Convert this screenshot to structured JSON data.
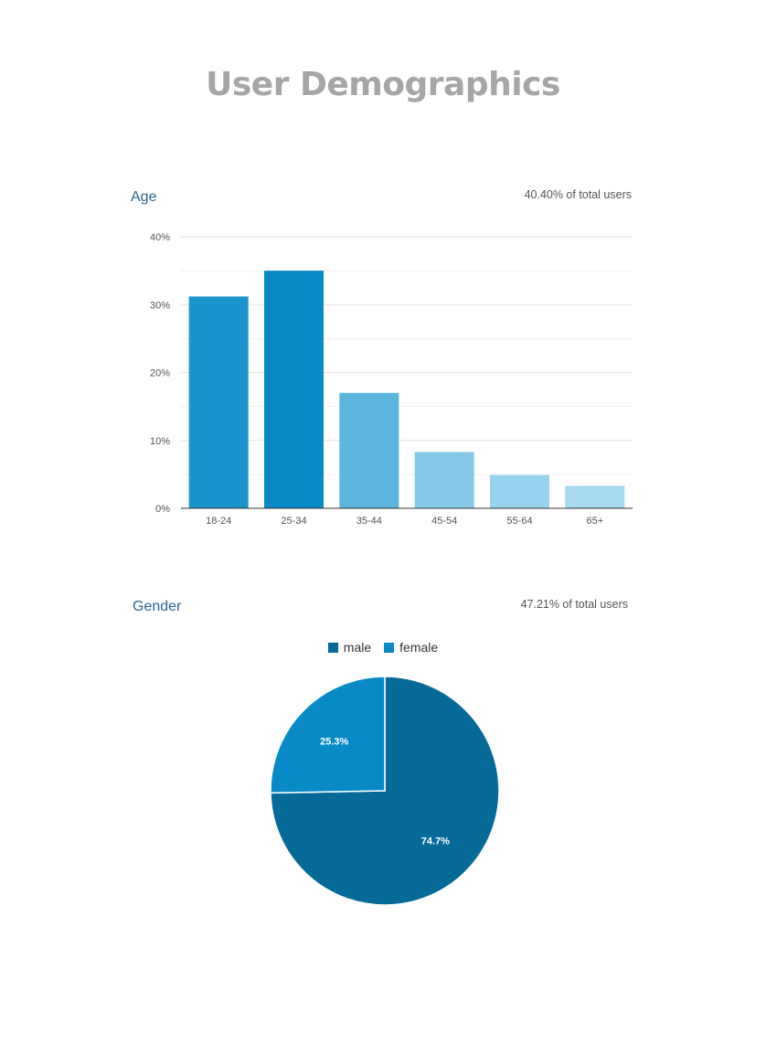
{
  "page": {
    "title": "User Demographics"
  },
  "age": {
    "title": "Age",
    "stat": "40.40% of total users"
  },
  "gender": {
    "title": "Gender",
    "stat": "47.21% of total users"
  },
  "chart_data": [
    {
      "type": "bar",
      "categories": [
        "18-24",
        "25-34",
        "35-44",
        "45-54",
        "55-64",
        "65+"
      ],
      "values": [
        31.2,
        35.0,
        17.0,
        8.3,
        4.9,
        3.3
      ],
      "colors": [
        "#1a94cc",
        "#078ac6",
        "#5bb5de",
        "#85c9e8",
        "#97d3ee",
        "#a4d9f0"
      ],
      "ylim": [
        0,
        40
      ],
      "yticks": [
        0,
        10,
        20,
        30,
        40
      ],
      "ytick_labels": [
        "0%",
        "10%",
        "20%",
        "30%",
        "40%"
      ],
      "grid": true
    },
    {
      "type": "pie",
      "labels": [
        "male",
        "female"
      ],
      "values": [
        74.7,
        25.3
      ],
      "value_labels": [
        "74.7%",
        "25.3%"
      ],
      "colors": [
        "#056a97",
        "#078ac6"
      ],
      "legend": "top"
    }
  ]
}
